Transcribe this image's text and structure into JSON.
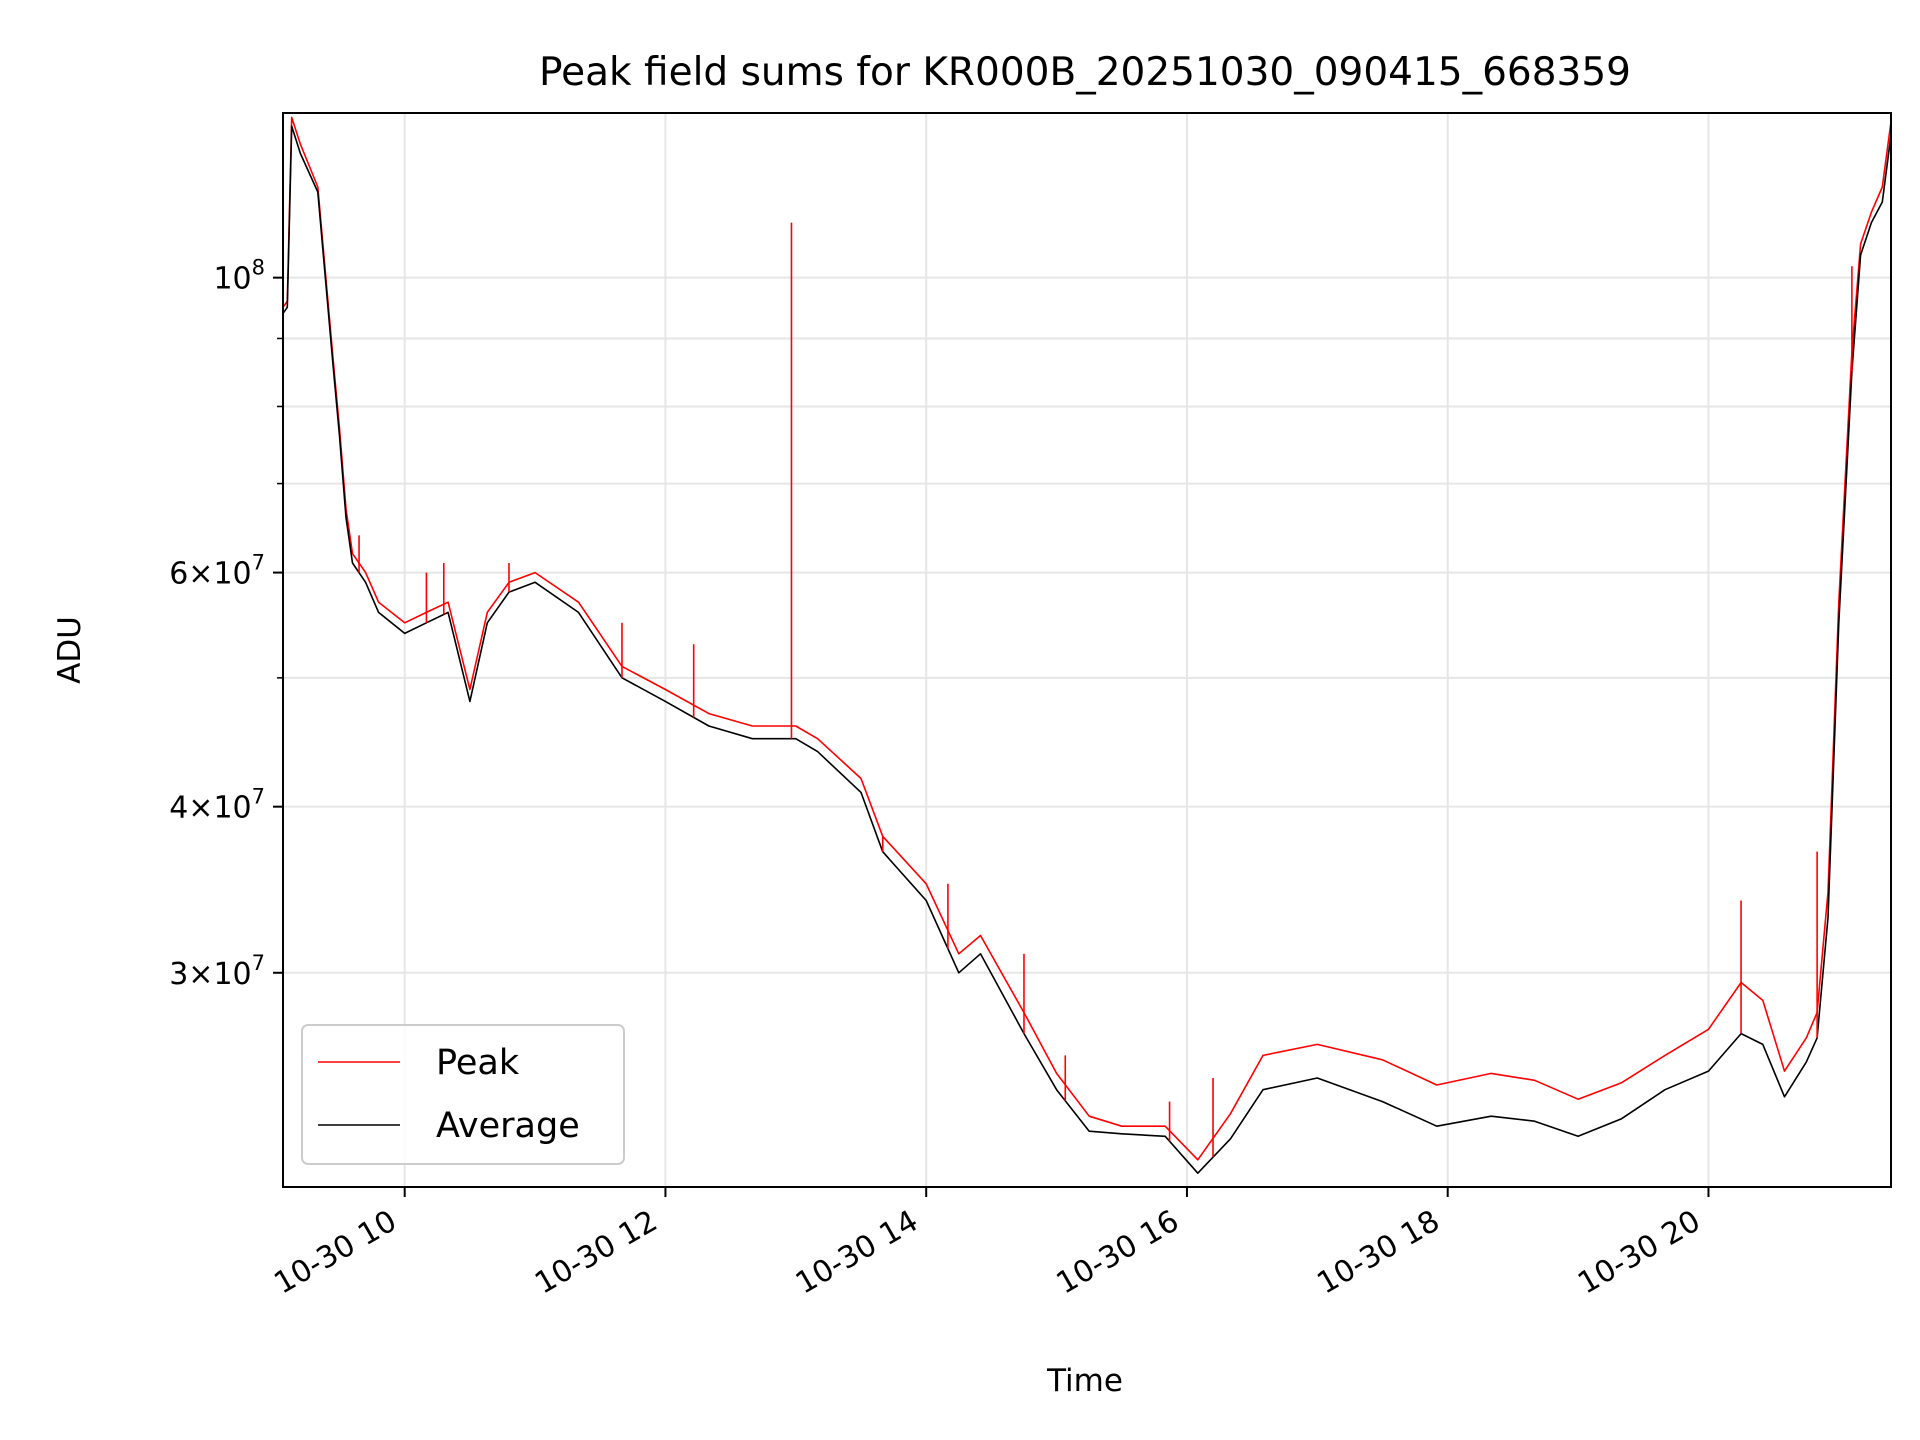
{
  "chart_data": {
    "type": "line",
    "title": "Peak field sums for KR000B_20251030_090415_668359",
    "xlabel": "Time",
    "ylabel": "ADU",
    "y_scale": "log",
    "xlim": [
      "2025-10-30 09:04",
      "2025-10-30 21:24"
    ],
    "ylim": [
      20700000,
      133000000
    ],
    "grid": true,
    "legend_position": "lower-left",
    "x_ticks": [
      {
        "value": "2025-10-30 10:00",
        "label": "10-30 10"
      },
      {
        "value": "2025-10-30 12:00",
        "label": "10-30 12"
      },
      {
        "value": "2025-10-30 14:00",
        "label": "10-30 14"
      },
      {
        "value": "2025-10-30 16:00",
        "label": "10-30 16"
      },
      {
        "value": "2025-10-30 18:00",
        "label": "10-30 18"
      },
      {
        "value": "2025-10-30 20:00",
        "label": "10-30 20"
      }
    ],
    "y_ticks_major": [
      {
        "value": 100000000,
        "mantissa": "",
        "exp": "8"
      },
      {
        "value": 60000000,
        "mantissa": "6",
        "exp": "7"
      },
      {
        "value": 40000000,
        "mantissa": "4",
        "exp": "7"
      },
      {
        "value": 30000000,
        "mantissa": "3",
        "exp": "7"
      }
    ],
    "y_ticks_minor": [
      90000000,
      80000000,
      70000000,
      50000000
    ],
    "series": [
      {
        "name": "Average",
        "color": "#000000",
        "x": [
          "2025-10-30 09:04",
          "2025-10-30 09:06",
          "2025-10-30 09:08",
          "2025-10-30 09:12",
          "2025-10-30 09:20",
          "2025-10-30 09:27",
          "2025-10-30 09:30",
          "2025-10-30 09:33",
          "2025-10-30 09:36",
          "2025-10-30 09:42",
          "2025-10-30 09:48",
          "2025-10-30 10:00",
          "2025-10-30 10:10",
          "2025-10-30 10:20",
          "2025-10-30 10:30",
          "2025-10-30 10:38",
          "2025-10-30 10:48",
          "2025-10-30 11:00",
          "2025-10-30 11:20",
          "2025-10-30 11:40",
          "2025-10-30 12:00",
          "2025-10-30 12:20",
          "2025-10-30 12:40",
          "2025-10-30 13:00",
          "2025-10-30 13:10",
          "2025-10-30 13:30",
          "2025-10-30 13:40",
          "2025-10-30 14:00",
          "2025-10-30 14:15",
          "2025-10-30 14:25",
          "2025-10-30 14:45",
          "2025-10-30 15:00",
          "2025-10-30 15:15",
          "2025-10-30 15:30",
          "2025-10-30 15:50",
          "2025-10-30 16:05",
          "2025-10-30 16:20",
          "2025-10-30 16:35",
          "2025-10-30 17:00",
          "2025-10-30 17:30",
          "2025-10-30 17:55",
          "2025-10-30 18:20",
          "2025-10-30 18:40",
          "2025-10-30 19:00",
          "2025-10-30 19:20",
          "2025-10-30 19:40",
          "2025-10-30 20:00",
          "2025-10-30 20:15",
          "2025-10-30 20:25",
          "2025-10-30 20:35",
          "2025-10-30 20:45",
          "2025-10-30 20:50",
          "2025-10-30 20:55",
          "2025-10-30 21:00",
          "2025-10-30 21:06",
          "2025-10-30 21:10",
          "2025-10-30 21:15",
          "2025-10-30 21:20",
          "2025-10-30 21:24"
        ],
        "y": [
          94000000,
          95000000,
          130000000,
          124000000,
          116000000,
          86000000,
          76000000,
          66000000,
          61000000,
          59000000,
          56000000,
          54000000,
          55000000,
          56000000,
          48000000,
          55000000,
          58000000,
          59000000,
          56000000,
          50000000,
          48000000,
          46000000,
          45000000,
          45000000,
          44000000,
          41000000,
          37000000,
          34000000,
          30000000,
          31000000,
          27000000,
          24500000,
          22800000,
          22700000,
          22600000,
          21200000,
          22500000,
          24500000,
          25000000,
          24000000,
          23000000,
          23400000,
          23200000,
          22600000,
          23300000,
          24500000,
          25300000,
          27000000,
          26500000,
          24200000,
          25700000,
          26800000,
          33000000,
          55000000,
          85000000,
          104000000,
          110000000,
          114000000,
          128000000
        ]
      },
      {
        "name": "Peak",
        "color": "#ff0000",
        "x": [
          "2025-10-30 09:04",
          "2025-10-30 09:06",
          "2025-10-30 09:08",
          "2025-10-30 09:12",
          "2025-10-30 09:20",
          "2025-10-30 09:27",
          "2025-10-30 09:30",
          "2025-10-30 09:33",
          "2025-10-30 09:36",
          "2025-10-30 09:42",
          "2025-10-30 09:48",
          "2025-10-30 10:00",
          "2025-10-30 10:10",
          "2025-10-30 10:20",
          "2025-10-30 10:30",
          "2025-10-30 10:38",
          "2025-10-30 10:48",
          "2025-10-30 11:00",
          "2025-10-30 11:20",
          "2025-10-30 11:40",
          "2025-10-30 12:00",
          "2025-10-30 12:20",
          "2025-10-30 12:40",
          "2025-10-30 13:00",
          "2025-10-30 13:10",
          "2025-10-30 13:30",
          "2025-10-30 13:40",
          "2025-10-30 14:00",
          "2025-10-30 14:15",
          "2025-10-30 14:25",
          "2025-10-30 14:45",
          "2025-10-30 15:00",
          "2025-10-30 15:15",
          "2025-10-30 15:30",
          "2025-10-30 15:50",
          "2025-10-30 16:05",
          "2025-10-30 16:20",
          "2025-10-30 16:35",
          "2025-10-30 17:00",
          "2025-10-30 17:30",
          "2025-10-30 17:55",
          "2025-10-30 18:20",
          "2025-10-30 18:40",
          "2025-10-30 19:00",
          "2025-10-30 19:20",
          "2025-10-30 19:40",
          "2025-10-30 20:00",
          "2025-10-30 20:15",
          "2025-10-30 20:25",
          "2025-10-30 20:35",
          "2025-10-30 20:45",
          "2025-10-30 20:50",
          "2025-10-30 20:55",
          "2025-10-30 21:00",
          "2025-10-30 21:06",
          "2025-10-30 21:10",
          "2025-10-30 21:15",
          "2025-10-30 21:20",
          "2025-10-30 21:24"
        ],
        "y": [
          95000000,
          96000000,
          132000000,
          126000000,
          117000000,
          87000000,
          77000000,
          67000000,
          62000000,
          60000000,
          57000000,
          55000000,
          56000000,
          57000000,
          49000000,
          56000000,
          59000000,
          60000000,
          57000000,
          51000000,
          49000000,
          47000000,
          46000000,
          46000000,
          45000000,
          42000000,
          38000000,
          35000000,
          31000000,
          32000000,
          28000000,
          25200000,
          23400000,
          23000000,
          23000000,
          21700000,
          23500000,
          26000000,
          26500000,
          25800000,
          24700000,
          25200000,
          24900000,
          24100000,
          24800000,
          26000000,
          27200000,
          29500000,
          28600000,
          25300000,
          26800000,
          28000000,
          34500000,
          57000000,
          88000000,
          106000000,
          112000000,
          117000000,
          131000000
        ]
      }
    ],
    "peak_spikes": [
      {
        "x": "2025-10-30 09:39",
        "y": 64000000
      },
      {
        "x": "2025-10-30 10:10",
        "y": 60000000
      },
      {
        "x": "2025-10-30 10:18",
        "y": 61000000
      },
      {
        "x": "2025-10-30 10:48",
        "y": 61000000
      },
      {
        "x": "2025-10-30 11:40",
        "y": 55000000
      },
      {
        "x": "2025-10-30 12:13",
        "y": 53000000
      },
      {
        "x": "2025-10-30 12:58",
        "y": 110000000
      },
      {
        "x": "2025-10-30 13:40",
        "y": 38000000
      },
      {
        "x": "2025-10-30 14:10",
        "y": 35000000
      },
      {
        "x": "2025-10-30 14:45",
        "y": 31000000
      },
      {
        "x": "2025-10-30 15:04",
        "y": 26000000
      },
      {
        "x": "2025-10-30 15:52",
        "y": 24000000
      },
      {
        "x": "2025-10-30 16:12",
        "y": 25000000
      },
      {
        "x": "2025-10-30 20:15",
        "y": 34000000
      },
      {
        "x": "2025-10-30 20:50",
        "y": 37000000
      },
      {
        "x": "2025-10-30 21:06",
        "y": 102000000
      }
    ]
  }
}
